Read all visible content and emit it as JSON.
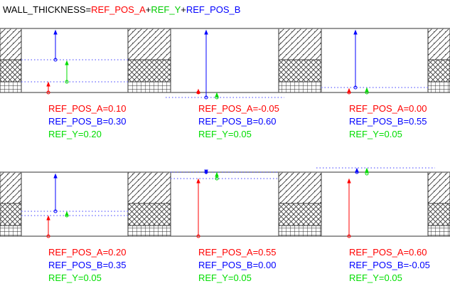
{
  "title": {
    "prefix": "WALL_THICKNESS=",
    "a": "REF_POS_A",
    "plus1": "+",
    "y": "REF_Y",
    "plus2": "+",
    "b": "REF_POS_B"
  },
  "colors": {
    "ref_pos_a": "#ff0000",
    "ref_pos_b": "#0000ff",
    "ref_y": "#00dd00"
  },
  "cases": [
    {
      "a": "REF_POS_A=0.10",
      "b": "REF_POS_B=0.30",
      "y": "REF_Y=0.20"
    },
    {
      "a": "REF_POS_A=-0.05",
      "b": "REF_POS_B=0.60",
      "y": "REF_Y=0.05"
    },
    {
      "a": "REF_POS_A=0.00",
      "b": "REF_POS_B=0.55",
      "y": "REF_Y=0.05"
    },
    {
      "a": "REF_POS_A=0.20",
      "b": "REF_POS_B=0.35",
      "y": "REF_Y=0.05"
    },
    {
      "a": "REF_POS_A=0.55",
      "b": "REF_POS_B=0.00",
      "y": "REF_Y=0.05"
    },
    {
      "a": "REF_POS_A=0.60",
      "b": "REF_POS_B=-0.05",
      "y": "REF_Y=0.05"
    }
  ]
}
